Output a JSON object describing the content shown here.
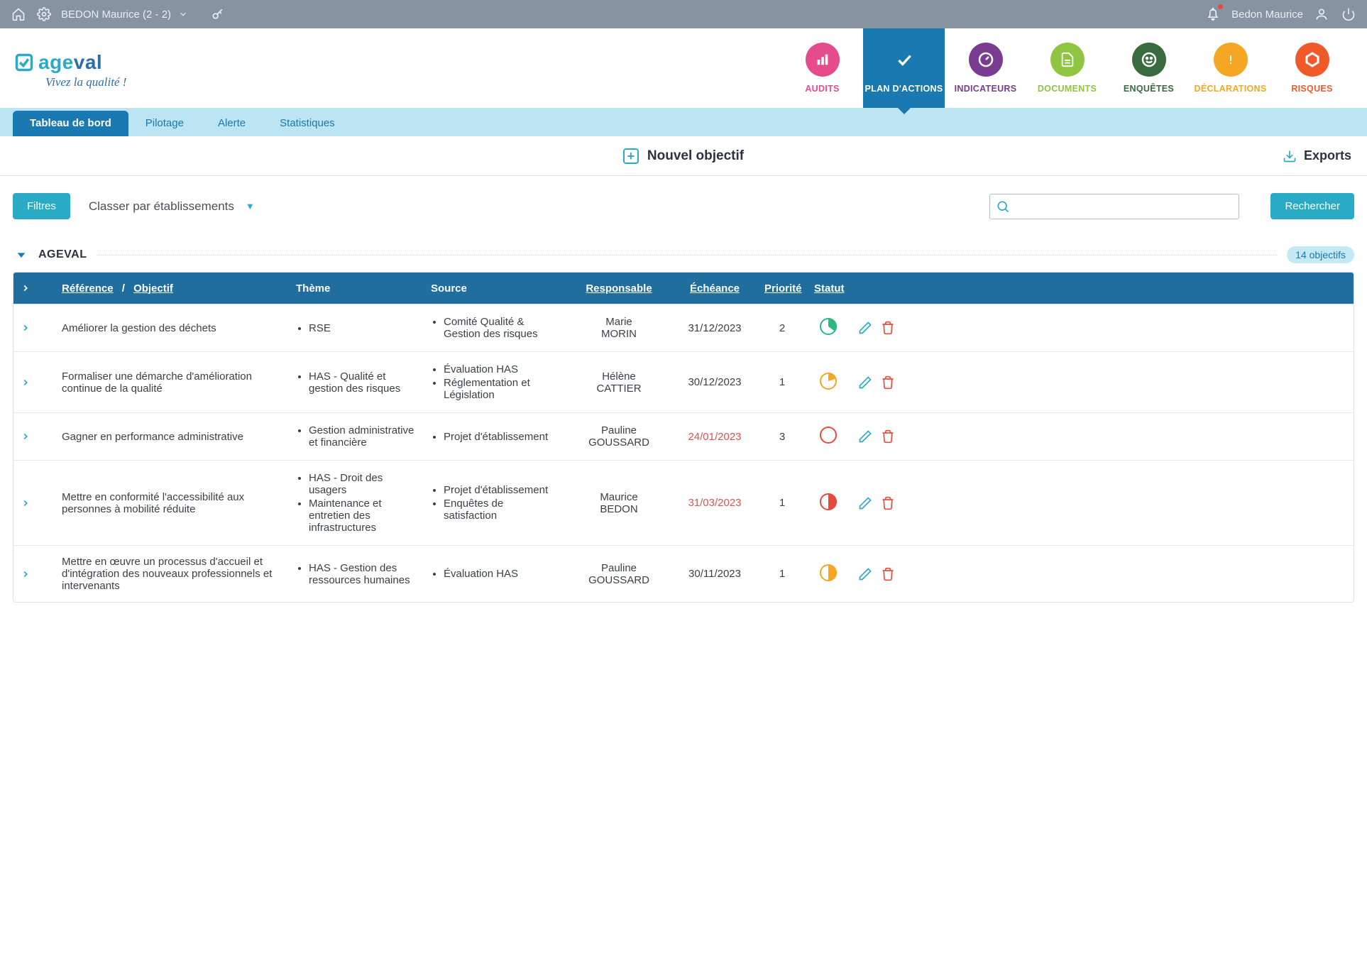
{
  "topbar": {
    "user_dropdown": "BEDON Maurice (2 - 2)",
    "user_name_right": "Bedon Maurice"
  },
  "logo": {
    "part1": "age",
    "part2": "val",
    "tagline": "Vivez la qualité !"
  },
  "main_nav": [
    {
      "label": "AUDITS",
      "color": "#e64b8c",
      "icon": "bars",
      "label_color": "#e64b8c"
    },
    {
      "label": "PLAN D'ACTIONS",
      "color": "#1979b0",
      "icon": "check",
      "label_color": "#ffffff",
      "active": true
    },
    {
      "label": "INDICATEURS",
      "color": "#7a3b92",
      "icon": "gauge",
      "label_color": "#7a3b92"
    },
    {
      "label": "DOCUMENTS",
      "color": "#8fc540",
      "icon": "doc",
      "label_color": "#8fc540"
    },
    {
      "label": "ENQUÊTES",
      "color": "#3a6b3f",
      "icon": "smile",
      "label_color": "#3a6b3f"
    },
    {
      "label": "DÉCLARATIONS",
      "color": "#f5a623",
      "icon": "excl",
      "label_color": "#f5a623"
    },
    {
      "label": "RISQUES",
      "color": "#f05a28",
      "icon": "hex",
      "label_color": "#f05a28"
    }
  ],
  "sub_tabs": [
    "Tableau de bord",
    "Pilotage",
    "Alerte",
    "Statistiques"
  ],
  "sub_tab_active": 0,
  "actions": {
    "new_objective": "Nouvel objectif",
    "exports": "Exports"
  },
  "filters": {
    "button": "Filtres",
    "classer": "Classer par établissements",
    "rechercher": "Rechercher"
  },
  "group": {
    "title": "AGEVAL",
    "count": "14 objectifs"
  },
  "table": {
    "headers": {
      "reference": "Référence",
      "sep": "/",
      "objectif": "Objectif",
      "theme": "Thème",
      "source": "Source",
      "responsable": "Responsable",
      "echeance": "Échéance",
      "priorite": "Priorité",
      "statut": "Statut"
    },
    "rows": [
      {
        "objectif": "Améliorer la gestion des déchets",
        "themes": [
          "RSE"
        ],
        "sources": [
          "Comité Qualité & Gestion des risques"
        ],
        "responsable": "Marie MORIN",
        "echeance": "31/12/2023",
        "echeance_past": false,
        "priorite": "2",
        "statut_color": "#2fb781",
        "statut_pct": 35
      },
      {
        "objectif": "Formaliser une démarche d'amélioration continue de la qualité",
        "themes": [
          "HAS - Qualité et gestion des risques"
        ],
        "sources": [
          "Évaluation HAS",
          "Réglementation et Législation"
        ],
        "responsable": "Hélène CATTIER",
        "echeance": "30/12/2023",
        "echeance_past": false,
        "priorite": "1",
        "statut_color": "#f5a623",
        "statut_pct": 20
      },
      {
        "objectif": "Gagner en performance administrative",
        "themes": [
          "Gestion administrative et financière"
        ],
        "sources": [
          "Projet d'établissement"
        ],
        "responsable": "Pauline GOUSSARD",
        "echeance": "24/01/2023",
        "echeance_past": true,
        "priorite": "3",
        "statut_color": "#e64a3b",
        "statut_pct": 0
      },
      {
        "objectif": "Mettre en conformité l'accessibilité aux personnes à mobilité réduite",
        "themes": [
          "HAS - Droit des usagers",
          "Maintenance et entretien des infrastructures"
        ],
        "sources": [
          "Projet d'établissement",
          "Enquêtes de satisfaction"
        ],
        "responsable": "Maurice BEDON",
        "echeance": "31/03/2023",
        "echeance_past": true,
        "priorite": "1",
        "statut_color": "#e64a3b",
        "statut_pct": 50
      },
      {
        "objectif": "Mettre en œuvre un processus d'accueil et d'intégration des nouveaux professionnels et intervenants",
        "themes": [
          "HAS - Gestion des ressources humaines"
        ],
        "sources": [
          "Évaluation HAS"
        ],
        "responsable": "Pauline GOUSSARD",
        "echeance": "30/11/2023",
        "echeance_past": false,
        "priorite": "1",
        "statut_color": "#f5a623",
        "statut_pct": 50
      }
    ]
  },
  "colors": {
    "teal": "#29abc5",
    "blue": "#1979b0",
    "gray_top": "#8792a2"
  }
}
